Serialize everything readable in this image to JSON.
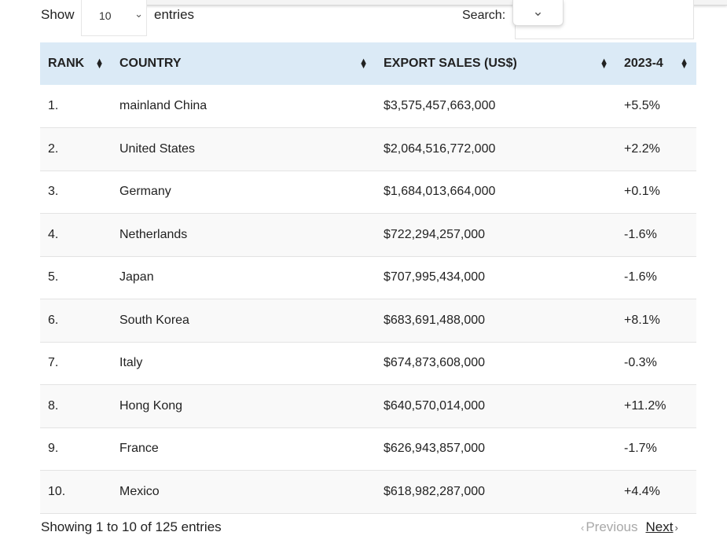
{
  "controls": {
    "show_label": "Show",
    "page_length": "10",
    "entries_label": "entries",
    "search_label": "Search:",
    "search_value": ""
  },
  "table": {
    "headers": [
      "RANK",
      "COUNTRY",
      "EXPORT SALES (US$)",
      "2023-4"
    ],
    "rows": [
      {
        "rank": "1.",
        "country": "mainland China",
        "sales": "$3,575,457,663,000",
        "change": "+5.5%"
      },
      {
        "rank": "2.",
        "country": "United States",
        "sales": "$2,064,516,772,000",
        "change": "+2.2%"
      },
      {
        "rank": "3.",
        "country": "Germany",
        "sales": "$1,684,013,664,000",
        "change": "+0.1%"
      },
      {
        "rank": "4.",
        "country": "Netherlands",
        "sales": "$722,294,257,000",
        "change": "-1.6%"
      },
      {
        "rank": "5.",
        "country": "Japan",
        "sales": "$707,995,434,000",
        "change": "-1.6%"
      },
      {
        "rank": "6.",
        "country": "South Korea",
        "sales": "$683,691,488,000",
        "change": "+8.1%"
      },
      {
        "rank": "7.",
        "country": "Italy",
        "sales": "$674,873,608,000",
        "change": "-0.3%"
      },
      {
        "rank": "8.",
        "country": "Hong Kong",
        "sales": "$640,570,014,000",
        "change": "+11.2%"
      },
      {
        "rank": "9.",
        "country": "France",
        "sales": "$626,943,857,000",
        "change": "-1.7%"
      },
      {
        "rank": "10.",
        "country": "Mexico",
        "sales": "$618,982,287,000",
        "change": "+4.4%"
      }
    ]
  },
  "footer": {
    "info": "Showing 1 to 10 of 125 entries",
    "previous_label": "Previous",
    "next_label": "Next"
  },
  "icons": {
    "sort": "sort-both-icon",
    "select_chevron": "chevron-down-icon",
    "previous": "chevron-left-icon",
    "next": "chevron-right-icon"
  }
}
